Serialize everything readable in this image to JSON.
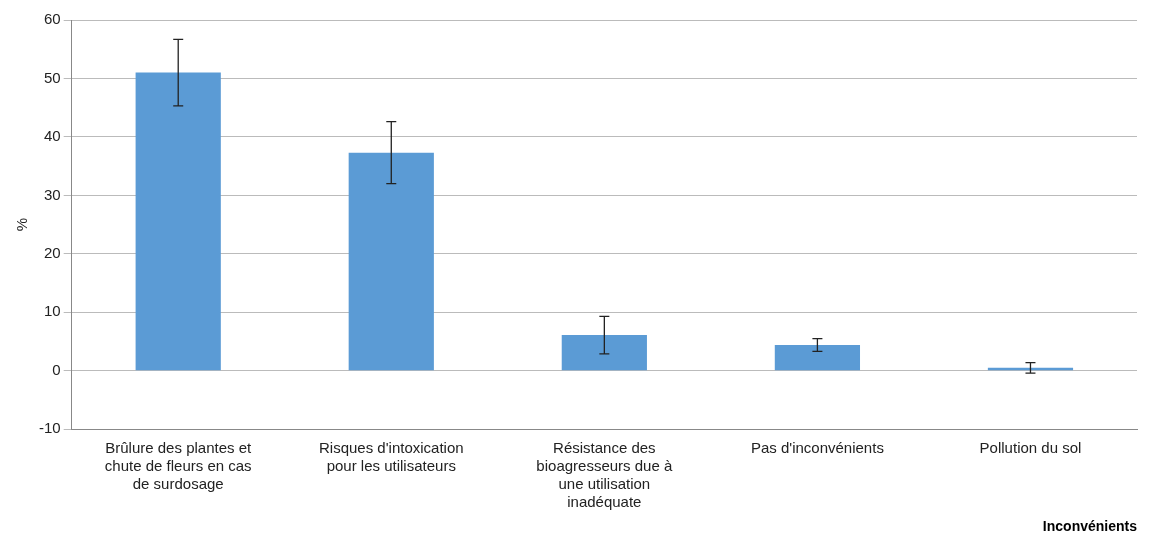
{
  "chart_data": {
    "type": "bar",
    "ylabel": "%",
    "xlabel": "Inconvénients",
    "categories": [
      "Brûlure des plantes et chute de fleurs en cas de surdosage",
      "Risques d'intoxication pour les utilisateurs",
      "Résistance des bioagresseurs due à une utilisation inadéquate",
      "Pas d'inconvénients",
      "Pollution du sol"
    ],
    "values": [
      51.0,
      37.3,
      6.1,
      4.4,
      0.5
    ],
    "errors": [
      5.7,
      5.3,
      3.2,
      1.1,
      0.9
    ],
    "color": "#5b9bd5",
    "ylim": [
      -10,
      60
    ],
    "yticks": [
      -10,
      0,
      10,
      20,
      30,
      40,
      50,
      60
    ],
    "grid": "y",
    "legend": false
  }
}
